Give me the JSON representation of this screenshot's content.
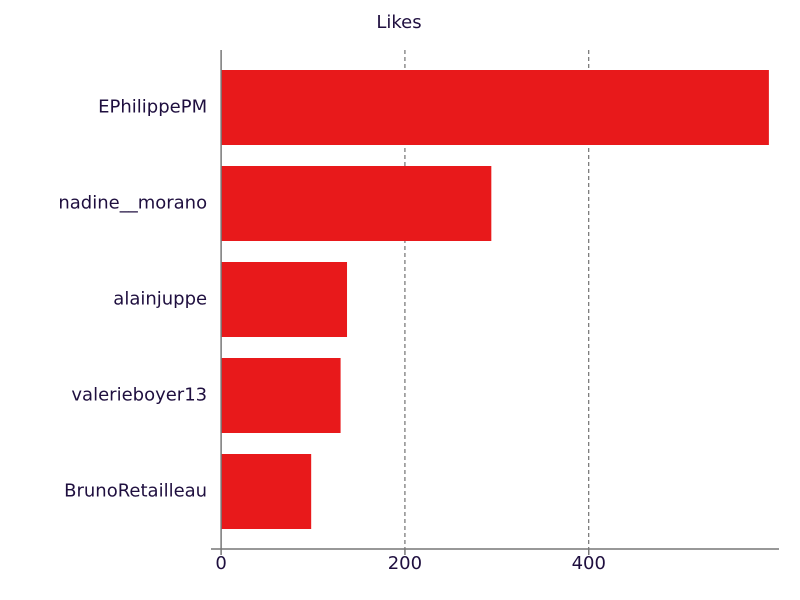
{
  "chart_data": {
    "type": "bar",
    "orientation": "horizontal",
    "title": "Likes",
    "categories": [
      "EPhilippePM",
      "nadine__morano",
      "alainjuppe",
      "valerieboyer13",
      "BrunoRetailleau"
    ],
    "values": [
      596,
      294,
      137,
      130,
      98
    ],
    "color": "#e8191b",
    "xlim": [
      -11,
      607
    ],
    "xticks": [
      0,
      200,
      400
    ],
    "grid": true
  }
}
